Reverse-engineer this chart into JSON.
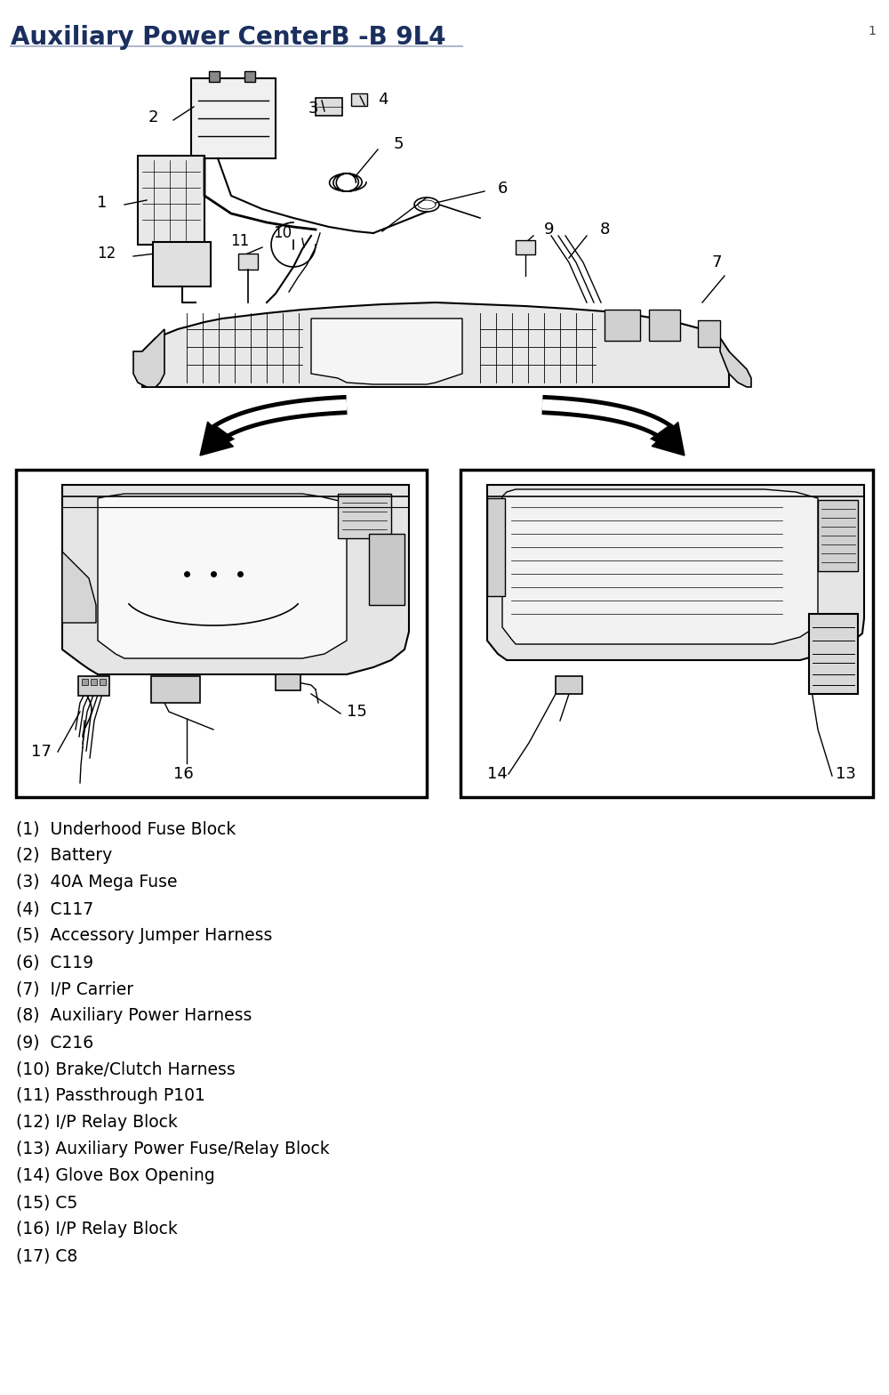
{
  "title": "Auxiliary Power CenterB -B 9L4",
  "title_color": "#1a2f5e",
  "title_fontsize": 20,
  "background_color": "#ffffff",
  "legend_items": [
    "(1)  Underhood Fuse Block",
    "(2)  Battery",
    "(3)  40A Mega Fuse",
    "(4)  C117",
    "(5)  Accessory Jumper Harness",
    "(6)  C119",
    "(7)  I/P Carrier",
    "(8)  Auxiliary Power Harness",
    "(9)  C216",
    "(10) Brake/Clutch Harness",
    "(11) Passthrough P101",
    "(12) I/P Relay Block",
    "(13) Auxiliary Power Fuse/Relay Block",
    "(14) Glove Box Opening",
    "(15) C5",
    "(16) I/P Relay Block",
    "(17) C8"
  ],
  "legend_fontsize": 13.5,
  "number_fontsize": 13,
  "page_number": "1",
  "lc": "#000000",
  "diagram_gray": "#c8c8c8",
  "diagram_dark": "#888888"
}
